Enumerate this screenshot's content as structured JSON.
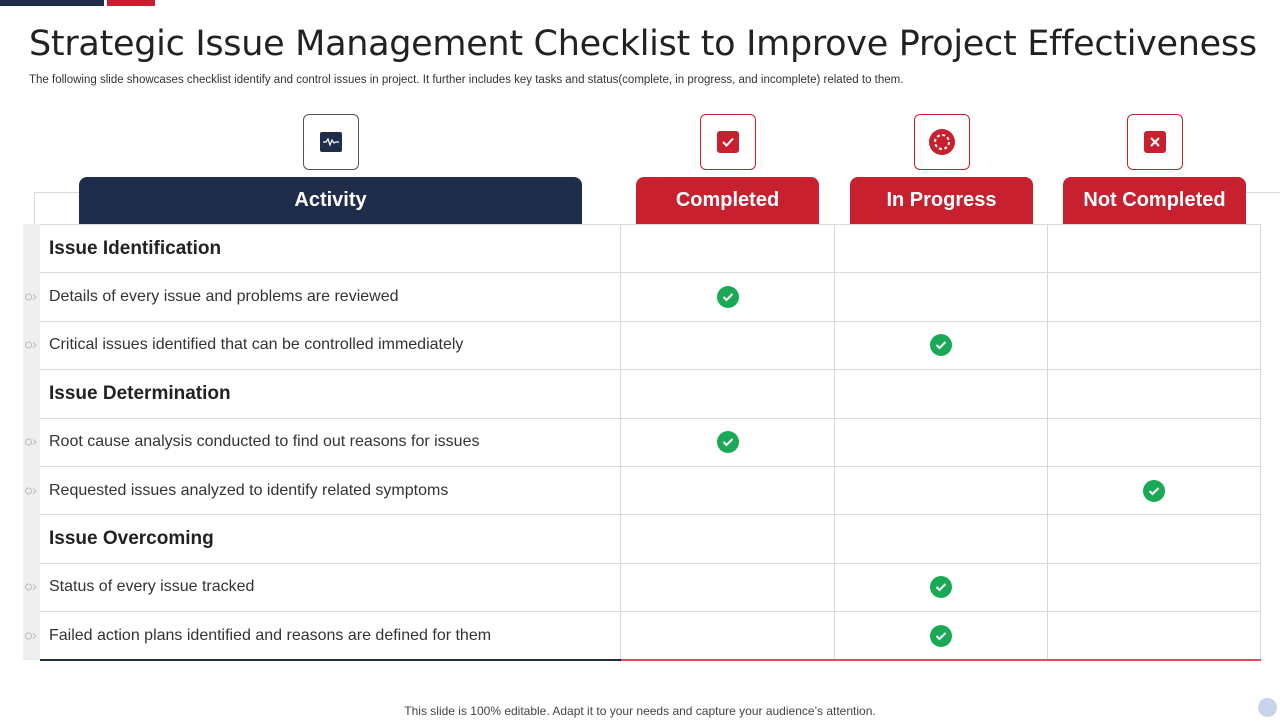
{
  "title": "Strategic Issue Management Checklist to Improve Project Effectiveness",
  "subtitle": "The following slide showcases checklist identify and control issues in project. It further includes key tasks and status(complete, in progress, and incomplete) related to them.",
  "columns": {
    "activity": "Activity",
    "completed": "Completed",
    "in_progress": "In Progress",
    "not_completed": "Not Completed"
  },
  "icons": {
    "activity": "waveform-monitor-icon",
    "completed": "checkbox-checked-icon",
    "in_progress": "progress-circle-icon",
    "not_completed": "close-box-icon"
  },
  "rows": [
    {
      "label": "Issue Identification",
      "section": true,
      "status": ""
    },
    {
      "label": "Details of every issue and problems are reviewed",
      "section": false,
      "status": "completed"
    },
    {
      "label": "Critical issues identified that can be controlled  immediately",
      "section": false,
      "status": "in_progress"
    },
    {
      "label": "Issue Determination",
      "section": true,
      "status": ""
    },
    {
      "label": "Root cause analysis conducted to find out reasons for issues",
      "section": false,
      "status": "completed"
    },
    {
      "label": "Requested issues analyzed to identify related symptoms",
      "section": false,
      "status": "not_completed"
    },
    {
      "label": "Issue Overcoming",
      "section": true,
      "status": ""
    },
    {
      "label": "Status of every issue tracked",
      "section": false,
      "status": "in_progress"
    },
    {
      "label": "Failed action plans identified and reasons are defined for them",
      "section": false,
      "status": "in_progress"
    }
  ],
  "colors": {
    "navy": "#1f2d4a",
    "red": "#c8202f",
    "check_green": "#1aaa55"
  },
  "footer": "This slide is 100% editable. Adapt it to your needs and capture your audience’s attention."
}
